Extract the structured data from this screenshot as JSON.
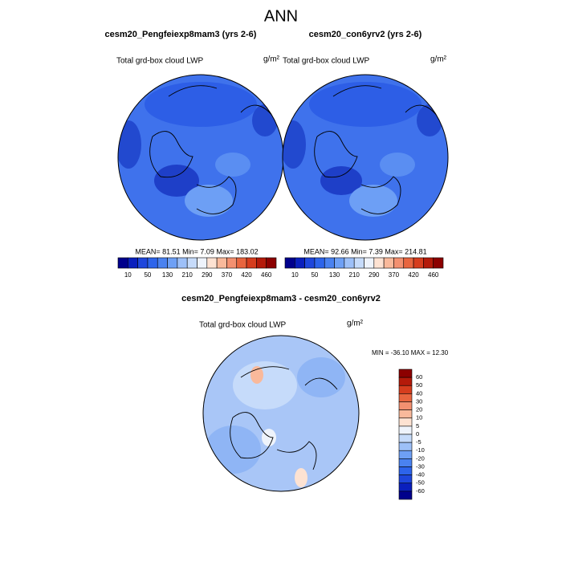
{
  "title": "ANN",
  "panels": [
    {
      "title": "cesm20_Pengfeiexp8mam3 (yrs 2-6)",
      "variable": "Total grd-box cloud LWP",
      "units": "g/m²",
      "stats": "MEAN=  81.51  Min=   7.09  Max= 183.02",
      "colorbar": [
        "10",
        "50",
        "130",
        "210",
        "290",
        "370",
        "420",
        "460"
      ]
    },
    {
      "title": "cesm20_con6yrv2 (yrs 2-6)",
      "variable": "Total grd-box cloud LWP",
      "units": "g/m²",
      "stats": "MEAN=  92.66  Min=   7.39  Max= 214.81",
      "colorbar": [
        "10",
        "50",
        "130",
        "210",
        "290",
        "370",
        "420",
        "460"
      ]
    }
  ],
  "difference": {
    "title": "cesm20_Pengfeiexp8mam3 - cesm20_con6yrv2",
    "variable": "Total grd-box cloud LWP",
    "units": "g/m²",
    "stats": "MIN = -36.10 MAX =  12.30",
    "colorbar": [
      "60",
      "50",
      "40",
      "30",
      "20",
      "10",
      "5",
      "0",
      "-5",
      "-10",
      "-20",
      "-30",
      "-40",
      "-50",
      "-60"
    ]
  }
}
